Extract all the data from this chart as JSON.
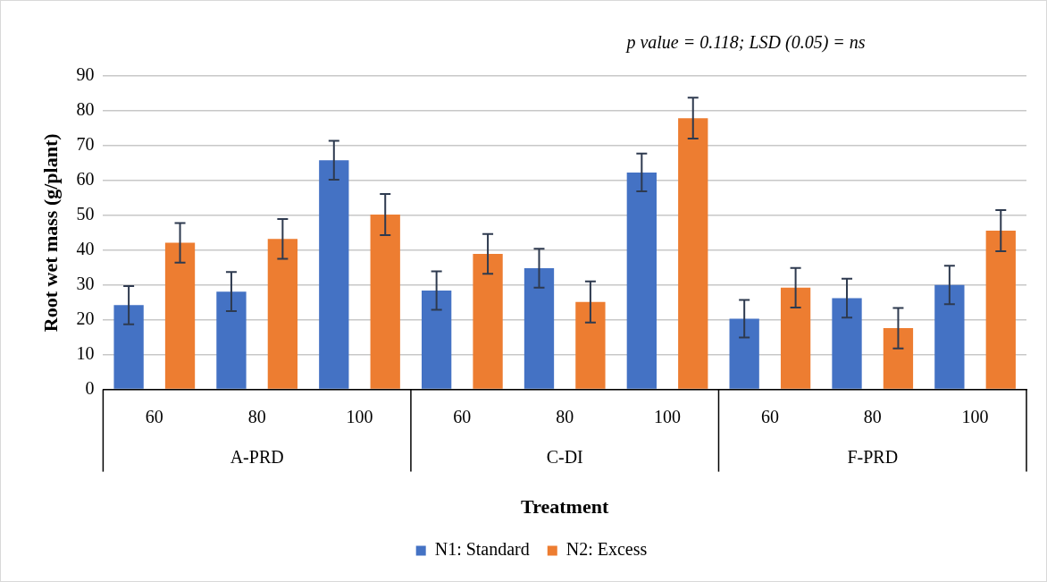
{
  "chart_data": {
    "type": "bar",
    "xlabel": "Treatment",
    "ylabel": "Root wet mass (g/plant)",
    "categories": [
      "60",
      "80",
      "100",
      "60",
      "80",
      "100",
      "60",
      "80",
      "100"
    ],
    "annotations": [
      "p value = 0.118; LSD (0.05) = ns",
      "A-PRD",
      "C-DI",
      "F-PRD"
    ],
    "series": [
      {
        "name": "N1: Standard",
        "color": "#4472c4",
        "values": [
          24.2,
          28.1,
          65.8,
          28.4,
          34.8,
          62.3,
          20.3,
          26.2,
          30.0
        ],
        "errors": [
          5.5,
          5.6,
          5.6,
          5.5,
          5.6,
          5.4,
          5.4,
          5.6,
          5.5
        ]
      },
      {
        "name": "N2: Excess",
        "color": "#ed7d31",
        "values": [
          42.1,
          43.2,
          50.2,
          38.9,
          25.1,
          77.9,
          29.2,
          17.6,
          45.6
        ],
        "errors": [
          5.7,
          5.7,
          5.9,
          5.7,
          5.9,
          5.9,
          5.7,
          5.8,
          5.9
        ]
      }
    ],
    "ylim": [
      0,
      90
    ],
    "yticks": [
      0,
      10,
      20,
      30,
      40,
      50,
      60,
      70,
      80,
      90
    ],
    "grid": "y",
    "legend": "bottom"
  }
}
